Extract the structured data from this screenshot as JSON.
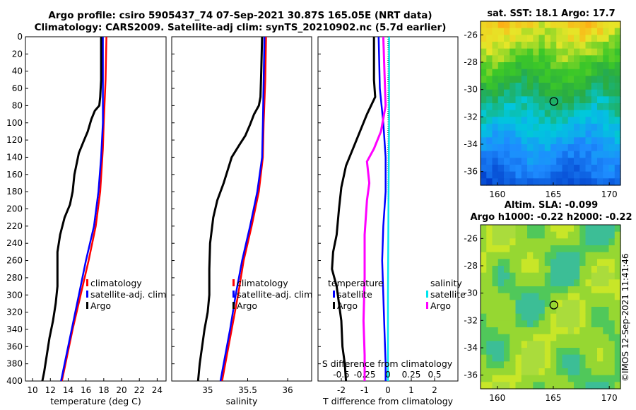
{
  "title": {
    "line1": "Argo profile: csiro 5905437_74 07-Sep-2021 30.87S 165.05E (NRT data)",
    "line2": "Climatology: CARS2009. Satellite-adj clim: synTS_20210902.nc (5.7d earlier)"
  },
  "colors": {
    "climatology": "#ff0000",
    "satellite": "#0000ff",
    "argo": "#000000",
    "argo_s": "#ff00ff",
    "sat_s": "#00e5ee"
  },
  "chart_data": [
    {
      "type": "line",
      "name": "temperature-profile",
      "xlabel": "temperature (deg C)",
      "ylabel": "depth",
      "xlim": [
        9.2,
        25
      ],
      "ylim": [
        0,
        400
      ],
      "xticks": [
        10,
        12,
        14,
        16,
        18,
        20,
        22,
        24
      ],
      "yticks": [
        0,
        20,
        40,
        60,
        80,
        100,
        120,
        140,
        160,
        180,
        200,
        220,
        240,
        260,
        280,
        300,
        320,
        340,
        360,
        380,
        400
      ],
      "legend": [
        "climatology",
        "satellite-adj. clim",
        "Argo"
      ],
      "series": [
        {
          "name": "climatology",
          "color": "#ff0000",
          "points": [
            [
              18.3,
              0
            ],
            [
              18.2,
              50
            ],
            [
              18.0,
              100
            ],
            [
              17.9,
              130
            ],
            [
              17.6,
              180
            ],
            [
              17.1,
              220
            ],
            [
              16.3,
              260
            ],
            [
              15.4,
              300
            ],
            [
              14.5,
              340
            ],
            [
              13.7,
              380
            ],
            [
              13.3,
              400
            ]
          ]
        },
        {
          "name": "satellite-adj. clim",
          "color": "#0000ff",
          "points": [
            [
              17.9,
              0
            ],
            [
              17.9,
              60
            ],
            [
              17.9,
              100
            ],
            [
              17.7,
              140
            ],
            [
              17.4,
              180
            ],
            [
              16.9,
              220
            ],
            [
              16.0,
              260
            ],
            [
              15.2,
              300
            ],
            [
              14.4,
              340
            ],
            [
              13.6,
              380
            ],
            [
              13.2,
              400
            ]
          ]
        },
        {
          "name": "Argo",
          "color": "#000000",
          "points": [
            [
              17.7,
              0
            ],
            [
              17.7,
              50
            ],
            [
              17.6,
              70
            ],
            [
              17.5,
              80
            ],
            [
              17.0,
              86
            ],
            [
              16.6,
              96
            ],
            [
              16.2,
              110
            ],
            [
              15.8,
              120
            ],
            [
              15.2,
              135
            ],
            [
              14.7,
              160
            ],
            [
              14.5,
              180
            ],
            [
              14.2,
              195
            ],
            [
              13.6,
              210
            ],
            [
              13.1,
              230
            ],
            [
              12.8,
              250
            ],
            [
              12.8,
              290
            ],
            [
              12.6,
              310
            ],
            [
              12.3,
              330
            ],
            [
              11.9,
              350
            ],
            [
              11.6,
              370
            ],
            [
              11.3,
              390
            ],
            [
              11.1,
              400
            ]
          ]
        }
      ]
    },
    {
      "type": "line",
      "name": "salinity-profile",
      "xlabel": "salinity",
      "xlim": [
        34.55,
        36.3
      ],
      "ylim": [
        0,
        400
      ],
      "xticks": [
        35,
        35.5,
        36
      ],
      "legend": [
        "climatology",
        "satellite-adj. clim",
        "Argo"
      ],
      "series": [
        {
          "name": "climatology",
          "color": "#ff0000",
          "points": [
            [
              35.73,
              0
            ],
            [
              35.72,
              50
            ],
            [
              35.7,
              100
            ],
            [
              35.69,
              140
            ],
            [
              35.64,
              180
            ],
            [
              35.55,
              220
            ],
            [
              35.45,
              260
            ],
            [
              35.38,
              300
            ],
            [
              35.3,
              340
            ],
            [
              35.22,
              380
            ],
            [
              35.18,
              400
            ]
          ]
        },
        {
          "name": "satellite-adj. clim",
          "color": "#0000ff",
          "points": [
            [
              35.71,
              0
            ],
            [
              35.7,
              50
            ],
            [
              35.69,
              100
            ],
            [
              35.68,
              140
            ],
            [
              35.62,
              180
            ],
            [
              35.53,
              220
            ],
            [
              35.43,
              260
            ],
            [
              35.35,
              300
            ],
            [
              35.28,
              340
            ],
            [
              35.2,
              380
            ],
            [
              35.16,
              400
            ]
          ]
        },
        {
          "name": "Argo",
          "color": "#000000",
          "points": [
            [
              35.68,
              0
            ],
            [
              35.67,
              40
            ],
            [
              35.66,
              70
            ],
            [
              35.64,
              80
            ],
            [
              35.58,
              90
            ],
            [
              35.53,
              102
            ],
            [
              35.47,
              115
            ],
            [
              35.4,
              125
            ],
            [
              35.3,
              140
            ],
            [
              35.25,
              155
            ],
            [
              35.2,
              170
            ],
            [
              35.12,
              190
            ],
            [
              35.07,
              210
            ],
            [
              35.03,
              240
            ],
            [
              35.02,
              270
            ],
            [
              35.02,
              300
            ],
            [
              35.0,
              320
            ],
            [
              34.96,
              340
            ],
            [
              34.93,
              360
            ],
            [
              34.9,
              380
            ],
            [
              34.88,
              400
            ]
          ]
        }
      ]
    },
    {
      "type": "line",
      "name": "difference-profile",
      "xlabel": "T difference from climatology",
      "x2label": "S difference from climatology",
      "xlim": [
        -3,
        3
      ],
      "ylim": [
        0,
        400
      ],
      "xticks": [
        -2,
        -1,
        0,
        1,
        2
      ],
      "x2ticks": [
        "-0.5",
        "-0.25",
        "0",
        "0.25",
        "0.5"
      ],
      "legend_t": [
        "temperature",
        "satellite",
        "Argo"
      ],
      "legend_s": [
        "salinity",
        "satellite",
        "Argo"
      ],
      "series": [
        {
          "name": "T satellite",
          "color": "#0000ff",
          "points": [
            [
              -0.4,
              0
            ],
            [
              -0.35,
              60
            ],
            [
              -0.2,
              100
            ],
            [
              -0.1,
              140
            ],
            [
              -0.1,
              180
            ],
            [
              -0.2,
              220
            ],
            [
              -0.25,
              260
            ],
            [
              -0.2,
              300
            ],
            [
              -0.15,
              340
            ],
            [
              -0.1,
              380
            ],
            [
              -0.1,
              400
            ]
          ]
        },
        {
          "name": "T Argo",
          "color": "#000000",
          "points": [
            [
              -0.6,
              0
            ],
            [
              -0.6,
              50
            ],
            [
              -0.55,
              70
            ],
            [
              -0.9,
              90
            ],
            [
              -1.2,
              110
            ],
            [
              -1.5,
              130
            ],
            [
              -1.8,
              150
            ],
            [
              -2.0,
              175
            ],
            [
              -2.1,
              200
            ],
            [
              -2.2,
              230
            ],
            [
              -2.35,
              250
            ],
            [
              -2.4,
              270
            ],
            [
              -2.2,
              290
            ],
            [
              -2.1,
              310
            ],
            [
              -2.0,
              330
            ],
            [
              -1.95,
              360
            ],
            [
              -1.85,
              380
            ],
            [
              -1.8,
              400
            ]
          ]
        },
        {
          "name": "S satellite",
          "color": "#00e5ee",
          "points": [
            [
              0.05,
              0
            ],
            [
              0.05,
              100
            ],
            [
              0.02,
              200
            ],
            [
              0.0,
              300
            ],
            [
              0.0,
              400
            ]
          ]
        },
        {
          "name": "S Argo",
          "color": "#ff00ff",
          "points": [
            [
              -0.2,
              0
            ],
            [
              -0.15,
              40
            ],
            [
              -0.1,
              80
            ],
            [
              -0.3,
              110
            ],
            [
              -0.6,
              130
            ],
            [
              -0.9,
              145
            ],
            [
              -0.8,
              170
            ],
            [
              -0.9,
              190
            ],
            [
              -1.0,
              230
            ],
            [
              -1.0,
              280
            ],
            [
              -1.05,
              330
            ],
            [
              -1.0,
              370
            ],
            [
              -1.0,
              400
            ]
          ]
        }
      ]
    },
    {
      "type": "heatmap",
      "name": "sst-map",
      "title": "sat. SST: 18.1 Argo: 17.7",
      "xlim": [
        158.5,
        171
      ],
      "ylim": [
        -37,
        -25
      ],
      "xticks": [
        160,
        165,
        170
      ],
      "yticks": [
        -26,
        -28,
        -30,
        -32,
        -34,
        -36
      ],
      "marker": [
        165.05,
        -30.87
      ]
    },
    {
      "type": "heatmap",
      "name": "sla-map",
      "title": "Altim. SLA: -0.099",
      "subtitle": "Argo h1000: -0.22 h2000: -0.22",
      "xlim": [
        158.5,
        171
      ],
      "ylim": [
        -37,
        -25
      ],
      "xticks": [
        160,
        165,
        170
      ],
      "yticks": [
        -26,
        -28,
        -30,
        -32,
        -34,
        -36
      ],
      "marker": [
        165.05,
        -30.87
      ]
    }
  ],
  "stamp": "©IMOS 12-Sep-2021 11:41:46"
}
